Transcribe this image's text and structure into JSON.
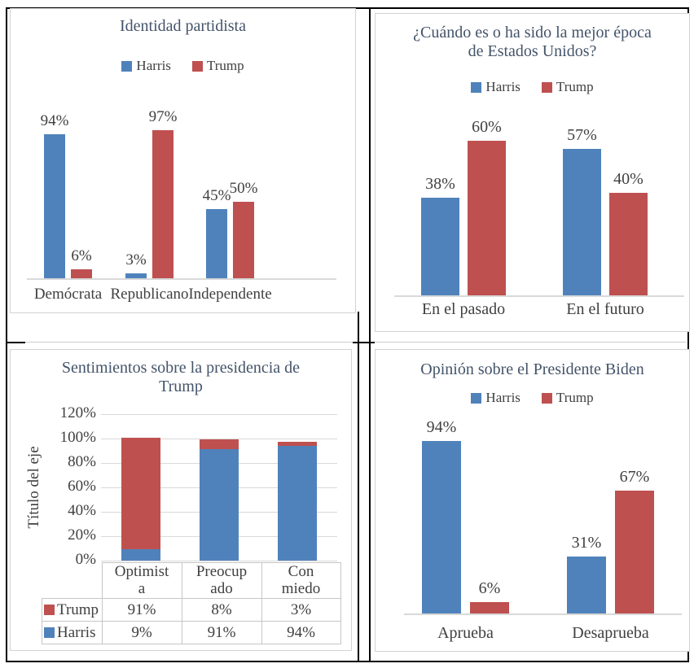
{
  "colors": {
    "harris_blue": "#4F82BB",
    "trump_red": "#BF5050",
    "title_text": "#44546A",
    "label_text": "#404040",
    "axis_gray": "#D9D9D9"
  },
  "chart_data": [
    {
      "id": "party-identity",
      "type": "bar",
      "title": "Identidad partidista",
      "legend_position": "top",
      "categories": [
        "Demócrata",
        "Republicano",
        "Independente"
      ],
      "series": [
        {
          "name": "Harris",
          "color": "#4F82BB",
          "values": [
            94,
            3,
            45
          ],
          "labels": [
            "94%",
            "3%",
            "45%"
          ]
        },
        {
          "name": "Trump",
          "color": "#BF5050",
          "values": [
            6,
            97,
            50
          ],
          "labels": [
            "6%",
            "97%",
            "50%"
          ]
        }
      ],
      "ylim": [
        0,
        100
      ],
      "grid": false
    },
    {
      "id": "best-era",
      "type": "bar",
      "title": "¿Cuándo es o ha sido la mejor época de Estados Unidos?",
      "legend_position": "top",
      "categories": [
        "En el pasado",
        "En el futuro"
      ],
      "series": [
        {
          "name": "Harris",
          "color": "#4F82BB",
          "values": [
            38,
            57
          ],
          "labels": [
            "38%",
            "57%"
          ]
        },
        {
          "name": "Trump",
          "color": "#BF5050",
          "values": [
            60,
            40
          ],
          "labels": [
            "60%",
            "40%"
          ]
        }
      ],
      "ylim": [
        0,
        100
      ],
      "grid": false
    },
    {
      "id": "trump-presidency-feelings",
      "type": "stacked-bar",
      "title": "Sentimientos sobre la presidencia de Trump",
      "ylabel": "Título del eje",
      "yticks": [
        "0%",
        "20%",
        "40%",
        "60%",
        "80%",
        "100%",
        "120%"
      ],
      "ylim": [
        0,
        120
      ],
      "grid": true,
      "categories": [
        "Optimista",
        "Preocupado",
        "Con miedo"
      ],
      "category_display": [
        "Optimist\na",
        "Preocup\nado",
        "Con\nmiedo"
      ],
      "series": [
        {
          "name": "Harris",
          "color": "#4F82BB",
          "values": [
            9,
            91,
            94
          ]
        },
        {
          "name": "Trump",
          "color": "#BF5050",
          "values": [
            91,
            8,
            3
          ]
        }
      ],
      "table": {
        "rows": [
          {
            "name": "Trump",
            "swatch": "#BF5050",
            "values": [
              "91%",
              "8%",
              "3%"
            ]
          },
          {
            "name": "Harris",
            "swatch": "#4F82BB",
            "values": [
              "9%",
              "91%",
              "94%"
            ]
          }
        ]
      }
    },
    {
      "id": "biden-opinion",
      "type": "bar",
      "title": "Opinión sobre el Presidente Biden",
      "legend_position": "top",
      "categories": [
        "Aprueba",
        "Desaprueba"
      ],
      "series": [
        {
          "name": "Harris",
          "color": "#4F82BB",
          "values": [
            94,
            31
          ],
          "labels": [
            "94%",
            "31%"
          ]
        },
        {
          "name": "Trump",
          "color": "#BF5050",
          "values": [
            6,
            67
          ],
          "labels": [
            "6%",
            "67%"
          ]
        }
      ],
      "ylim": [
        0,
        100
      ],
      "grid": false
    }
  ]
}
